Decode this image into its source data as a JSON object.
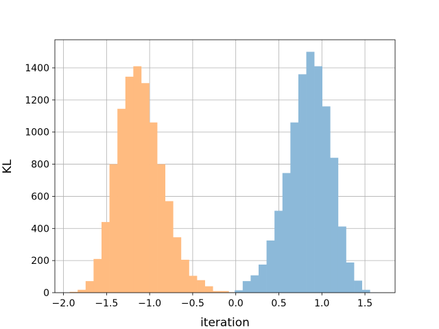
{
  "chart_data": {
    "type": "bar",
    "title": "",
    "xlabel": "iteration",
    "ylabel": "KL",
    "xlim": [
      -2.1,
      1.85
    ],
    "ylim": [
      0,
      1575
    ],
    "grid": true,
    "x_ticks": [
      -2.0,
      -1.5,
      -1.0,
      -0.5,
      0.0,
      0.5,
      1.0,
      1.5
    ],
    "x_tick_labels": [
      "−2.0",
      "−1.5",
      "−1.0",
      "−0.5",
      "0.0",
      "0.5",
      "1.0",
      "1.5"
    ],
    "y_ticks": [
      0,
      200,
      400,
      600,
      800,
      1000,
      1200,
      1400
    ],
    "y_tick_labels": [
      "0",
      "200",
      "400",
      "600",
      "800",
      "1000",
      "1200",
      "1400"
    ],
    "series": [
      {
        "color": "#ffbb80",
        "bin_width": 0.0923,
        "bin_starts": [
          -1.9277,
          -1.8354,
          -1.7431,
          -1.6508,
          -1.5585,
          -1.4662,
          -1.3739,
          -1.2816,
          -1.1893,
          -1.097,
          -1.0047,
          -0.9124,
          -0.8201,
          -0.7278,
          -0.6355,
          -0.5432,
          -0.4509,
          -0.3586,
          -0.2663,
          -0.174,
          -0.0817,
          0.0106
        ],
        "values": [
          5,
          18,
          72,
          210,
          440,
          800,
          1145,
          1345,
          1410,
          1305,
          1060,
          800,
          570,
          345,
          205,
          105,
          78,
          40,
          10,
          10,
          3,
          1
        ]
      },
      {
        "color": "#8cb9d9",
        "bin_width": 0.0923,
        "bin_starts": [
          -0.104,
          -0.0117,
          0.0806,
          0.1729,
          0.2652,
          0.3575,
          0.4498,
          0.5421,
          0.6344,
          0.7267,
          0.819,
          0.9113,
          1.0036,
          1.0959,
          1.1882,
          1.2805,
          1.3728,
          1.4651,
          1.5574
        ],
        "values": [
          2,
          15,
          72,
          108,
          175,
          325,
          510,
          745,
          1060,
          1360,
          1500,
          1410,
          1160,
          840,
          412,
          188,
          75,
          18,
          2
        ]
      }
    ]
  }
}
